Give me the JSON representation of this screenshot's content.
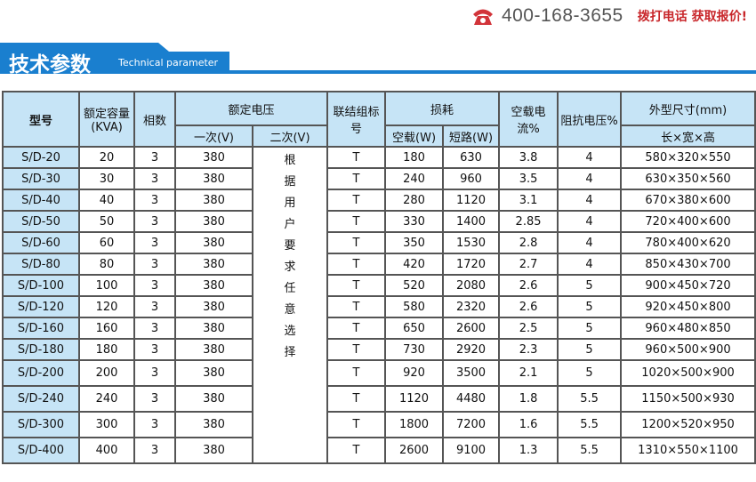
{
  "header": {
    "phone": "400-168-3655",
    "cta": "拨打电话 获取报价!",
    "icon": "phone-icon",
    "accent": "#1a7fcf",
    "cta_color": "#c8262a"
  },
  "banner": {
    "title": "技术参数",
    "subtitle": "Technical parameter"
  },
  "table": {
    "headers": {
      "model": "型号",
      "capacity": "额定容量(KVA)",
      "phases": "相数",
      "voltage": "额定电压",
      "primary": "一次(V)",
      "secondary": "二次(V)",
      "connection": "联结组标号",
      "loss": "损耗",
      "no_load": "空载(W)",
      "short": "短路(W)",
      "current": "空载电流%",
      "impedance": "阻抗电压%",
      "size": "外型尺寸(mm)",
      "size_sub": "长×宽×高"
    },
    "secondary_note": [
      "根",
      "据",
      "用",
      "户",
      "要",
      "求",
      "任",
      "意",
      "选",
      "择"
    ],
    "rows": [
      [
        "S/D-20",
        "20",
        "3",
        "380",
        "T",
        "180",
        "630",
        "3.8",
        "4",
        "580×320×550"
      ],
      [
        "S/D-30",
        "30",
        "3",
        "380",
        "T",
        "240",
        "960",
        "3.5",
        "4",
        "630×350×560"
      ],
      [
        "S/D-40",
        "40",
        "3",
        "380",
        "T",
        "280",
        "1120",
        "3.1",
        "4",
        "670×380×600"
      ],
      [
        "S/D-50",
        "50",
        "3",
        "380",
        "T",
        "330",
        "1400",
        "2.85",
        "4",
        "720×400×600"
      ],
      [
        "S/D-60",
        "60",
        "3",
        "380",
        "T",
        "350",
        "1530",
        "2.8",
        "4",
        "780×400×620"
      ],
      [
        "S/D-80",
        "80",
        "3",
        "380",
        "T",
        "420",
        "1720",
        "2.7",
        "4",
        "850×430×700"
      ],
      [
        "S/D-100",
        "100",
        "3",
        "380",
        "T",
        "520",
        "2080",
        "2.6",
        "5",
        "900×450×720"
      ],
      [
        "S/D-120",
        "120",
        "3",
        "380",
        "T",
        "580",
        "2320",
        "2.6",
        "5",
        "920×450×800"
      ],
      [
        "S/D-160",
        "160",
        "3",
        "380",
        "T",
        "650",
        "2600",
        "2.5",
        "5",
        "960×480×850"
      ],
      [
        "S/D-180",
        "180",
        "3",
        "380",
        "T",
        "730",
        "2920",
        "2.3",
        "5",
        "960×500×900"
      ],
      [
        "S/D-200",
        "200",
        "3",
        "380",
        "T",
        "920",
        "3500",
        "2.1",
        "5",
        "1020×500×900"
      ],
      [
        "S/D-240",
        "240",
        "3",
        "380",
        "T",
        "1120",
        "4480",
        "1.8",
        "5.5",
        "1150×500×930"
      ],
      [
        "S/D-300",
        "300",
        "3",
        "380",
        "T",
        "1800",
        "7200",
        "1.6",
        "5.5",
        "1200×520×950"
      ],
      [
        "S/D-400",
        "400",
        "3",
        "380",
        "T",
        "2600",
        "9100",
        "1.3",
        "5.5",
        "1310×550×1100"
      ]
    ]
  }
}
